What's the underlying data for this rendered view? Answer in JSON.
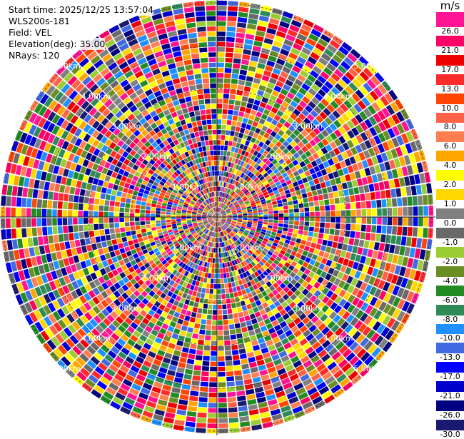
{
  "header": {
    "start_time": "Start time: 2025/12/25 13:57:04",
    "instrument": "WLS200s-181",
    "field": "Field: VEL",
    "elevation": "Elevation(deg): 35.00",
    "nrays": "NRays: 120"
  },
  "chart_data": {
    "type": "heatmap",
    "projection": "polar-ppi",
    "field": "VEL",
    "nrays": 120,
    "range_rings": [
      {
        "label": "1.00km"
      },
      {
        "label": "2.00km"
      },
      {
        "label": "3.00km"
      },
      {
        "label": "4.00km"
      },
      {
        "label": "5.00km"
      }
    ],
    "colorbar": {
      "unit": "m/s",
      "levels": [
        "26.0",
        "21.0",
        "17.0",
        "13.0",
        "10.0",
        "8.0",
        "6.0",
        "4.0",
        "2.0",
        "1.0",
        "0.0",
        "-1.0",
        "-2.0",
        "-4.0",
        "-6.0",
        "-8.0",
        "-10.0",
        "-13.0",
        "-17.0",
        "-21.0",
        "-26.0",
        "-30.0"
      ],
      "colors": [
        "#ff1493",
        "#ff0066",
        "#ee0000",
        "#ff2a2a",
        "#ff4500",
        "#ff6347",
        "#ff7f50",
        "#ffa500",
        "#ffff00",
        "#ffd700",
        "#808080",
        "#696969",
        "#9acd32",
        "#6b8e23",
        "#228b22",
        "#2e8b57",
        "#1e90ff",
        "#4169e1",
        "#0000ff",
        "#0000cd",
        "#000080",
        "#191970"
      ]
    }
  }
}
